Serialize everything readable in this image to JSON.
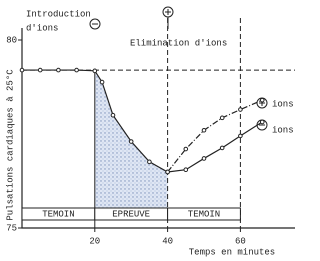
{
  "chart_data": {
    "type": "line",
    "y_label": "Pulsations cardiaques à 25°C",
    "x_label": "Temps en minutes",
    "xlim": [
      0,
      75
    ],
    "xticks": [
      20,
      40,
      60
    ],
    "ylim": [
      75,
      80
    ],
    "yticks": [
      80,
      75
    ],
    "x": [
      0,
      5,
      10,
      15,
      20,
      22,
      25,
      30,
      35,
      40,
      45,
      50,
      55,
      60,
      66
    ],
    "series": [
      {
        "name": "ions",
        "color": "#222",
        "style": "dashdot",
        "values": [
          null,
          null,
          null,
          null,
          null,
          null,
          null,
          null,
          null,
          76.49,
          77.1,
          77.6,
          77.93,
          78.15,
          78.4
        ]
      },
      {
        "name": "ions",
        "color": "#222",
        "style": "solid",
        "values": [
          79.2,
          79.2,
          79.2,
          79.2,
          79.18,
          78.88,
          78.0,
          77.3,
          76.76,
          76.49,
          76.55,
          76.85,
          77.13,
          77.45,
          77.82
        ]
      }
    ],
    "hline": 79.2,
    "vlines": [
      20,
      40,
      60
    ],
    "phases": [
      {
        "label": "TEMOIN",
        "start": 0,
        "end": 20
      },
      {
        "label": "EPREUVE",
        "start": 20,
        "end": 40
      },
      {
        "label": "TEMOIN",
        "start": 40,
        "end": 60
      }
    ],
    "annotations": {
      "introduction": [
        "Introduction",
        "d'ions"
      ],
      "elimination": "Elimination d'ions"
    }
  }
}
